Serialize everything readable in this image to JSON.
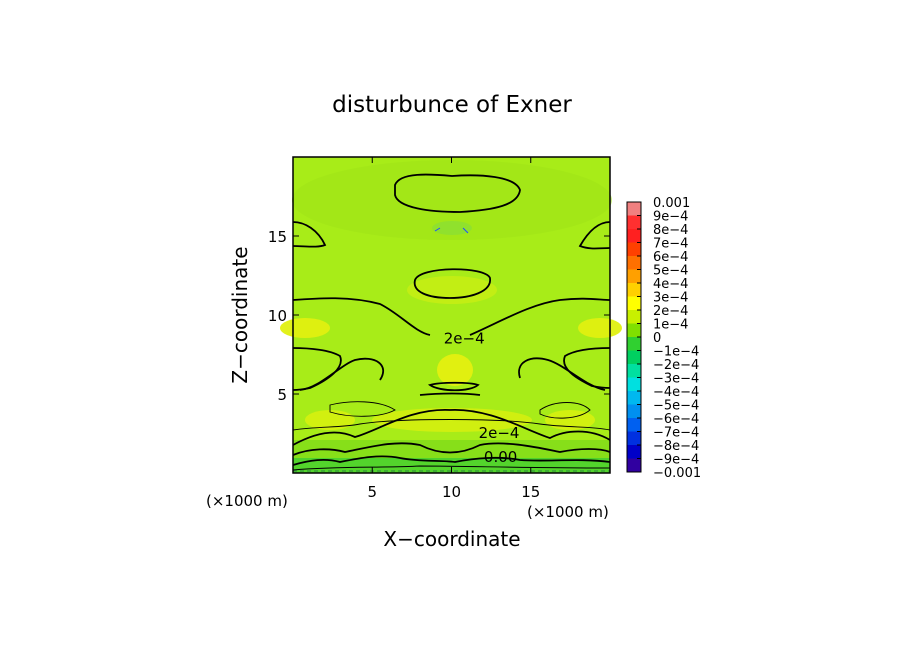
{
  "chart_data": {
    "type": "heatmap",
    "title": "disturbunce of Exner",
    "xlabel": "X−coordinate",
    "ylabel": "Z−coordinate",
    "x_unit_left": "(×1000 m)",
    "x_unit_right": "(×1000 m)",
    "xlim": [
      0,
      20
    ],
    "ylim": [
      0,
      20
    ],
    "xticks": [
      5,
      10,
      15
    ],
    "yticks": [
      5,
      10,
      15
    ],
    "xtick_labels": [
      "5",
      "10",
      "15"
    ],
    "ytick_labels": [
      "5",
      "10",
      "15"
    ],
    "colorbar": {
      "range": [
        -0.001,
        0.001
      ],
      "labels": [
        "0.001",
        "9e−4",
        "8e−4",
        "7e−4",
        "6e−4",
        "5e−4",
        "4e−4",
        "3e−4",
        "2e−4",
        "1e−4",
        "0",
        "−1e−4",
        "−2e−4",
        "−3e−4",
        "−4e−4",
        "−5e−4",
        "−6e−4",
        "−7e−4",
        "−8e−4",
        "−9e−4",
        "−0.001"
      ],
      "colors": [
        "#f08080",
        "#ff3030",
        "#ff2020",
        "#ff4000",
        "#ff7000",
        "#ffa000",
        "#ffd000",
        "#ffff00",
        "#c8f000",
        "#80e000",
        "#30d030",
        "#00d060",
        "#00e0a0",
        "#00e0e0",
        "#00b8f0",
        "#0090f0",
        "#0060f0",
        "#0030e0",
        "#0000c8",
        "#3000a0"
      ]
    },
    "contour_labels": [
      {
        "text": "2e−4",
        "x": 10.8,
        "z": 8.2
      },
      {
        "text": "2e−4",
        "x": 13.0,
        "z": 2.2
      },
      {
        "text": "0.00",
        "x": 13.1,
        "z": 0.7
      }
    ],
    "background_color": "#a8ec18"
  }
}
